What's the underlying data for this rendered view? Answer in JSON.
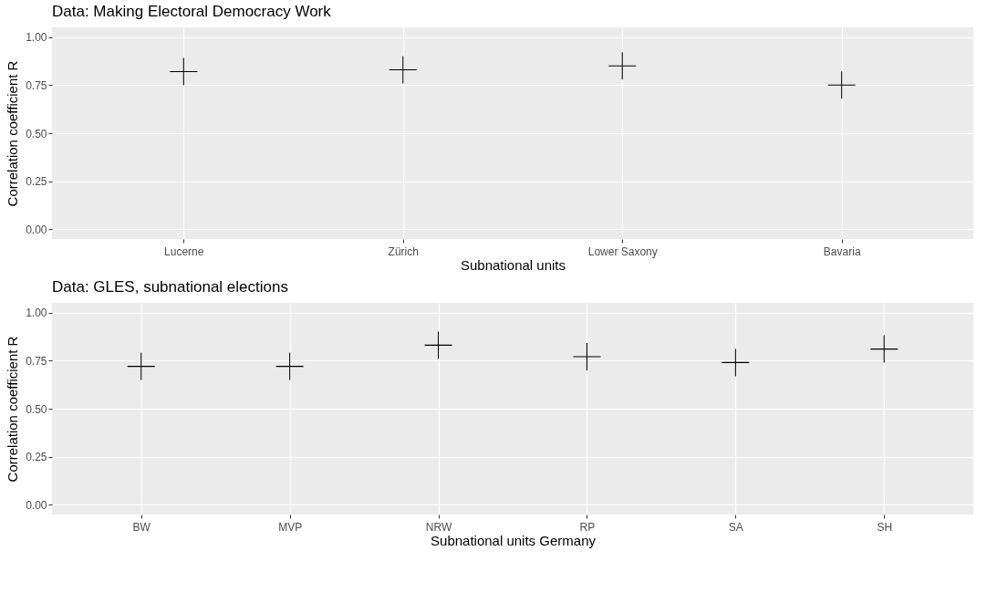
{
  "chart_data": [
    {
      "type": "scatter",
      "title": "Data: Making Electoral Democracy Work",
      "xlabel": "Subnational units",
      "ylabel": "Correlation coefficient R",
      "categories": [
        "Lucerne",
        "Zürich",
        "Lower Saxony",
        "Bavaria"
      ],
      "series": [
        {
          "color": "#000000",
          "values": [
            0.82,
            0.83,
            0.85,
            0.75
          ]
        }
      ],
      "ylim": [
        -0.05,
        1.05
      ],
      "yticks": [
        {
          "value": 0,
          "label": "0.00"
        },
        {
          "value": 0.25,
          "label": "0.25"
        },
        {
          "value": 0.5,
          "label": "0.50"
        },
        {
          "value": 0.75,
          "label": "0.75"
        },
        {
          "value": 1,
          "label": "1.00"
        }
      ],
      "grid": true,
      "marker": "cross"
    },
    {
      "type": "scatter",
      "title": "Data: GLES, subnational elections",
      "xlabel": "Subnational units Germany",
      "ylabel": "Correlation coefficient R",
      "categories": [
        "BW",
        "MVP",
        "NRW",
        "RP",
        "SA",
        "SH"
      ],
      "series": [
        {
          "color": "#000000",
          "values": [
            0.72,
            0.72,
            0.83,
            0.77,
            0.74,
            0.81
          ]
        }
      ],
      "ylim": [
        -0.05,
        1.05
      ],
      "yticks": [
        {
          "value": 0,
          "label": "0.00"
        },
        {
          "value": 0.25,
          "label": "0.25"
        },
        {
          "value": 0.5,
          "label": "0.50"
        },
        {
          "value": 0.75,
          "label": "0.75"
        },
        {
          "value": 1,
          "label": "1.00"
        }
      ],
      "grid": true,
      "marker": "cross"
    }
  ]
}
